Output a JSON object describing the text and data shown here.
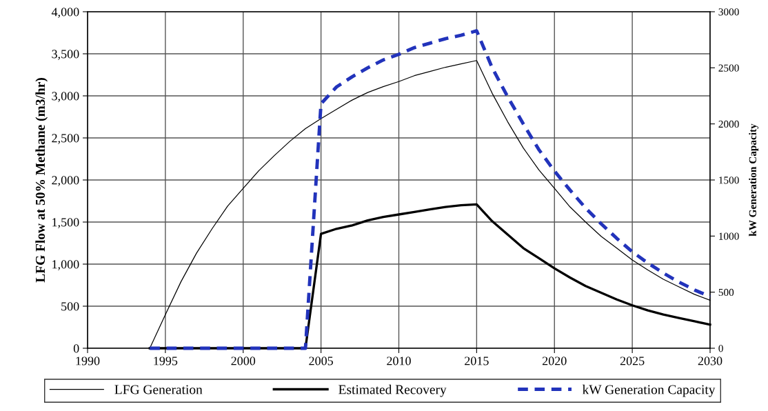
{
  "chart_data": {
    "type": "line",
    "ylabel": "LFG Flow at 50% Methane (m3/hr)",
    "y2label": "kW Generation Capacity",
    "x": [
      1994,
      1995,
      1996,
      1997,
      1998,
      1999,
      2000,
      2001,
      2002,
      2003,
      2004,
      2005,
      2006,
      2007,
      2008,
      2009,
      2010,
      2011,
      2012,
      2013,
      2014,
      2015,
      2016,
      2017,
      2018,
      2019,
      2020,
      2021,
      2022,
      2023,
      2024,
      2025,
      2026,
      2027,
      2028,
      2029,
      2030
    ],
    "series": [
      {
        "name": "LFG Generation",
        "color": "#000000",
        "line_style": "solid",
        "values": [
          0,
          400,
          790,
          1130,
          1420,
          1690,
          1900,
          2110,
          2290,
          2460,
          2610,
          2730,
          2840,
          2950,
          3040,
          3110,
          3170,
          3240,
          3290,
          3340,
          3380,
          3420,
          3030,
          2690,
          2380,
          2120,
          1900,
          1680,
          1500,
          1330,
          1190,
          1050,
          930,
          820,
          730,
          640,
          570
        ]
      },
      {
        "name": "Estimated Recovery",
        "color": "#000000",
        "line_style": "solid",
        "values": [
          0,
          0,
          0,
          0,
          0,
          0,
          0,
          0,
          0,
          0,
          0,
          1360,
          1420,
          1460,
          1520,
          1560,
          1590,
          1620,
          1650,
          1680,
          1700,
          1710,
          1510,
          1350,
          1190,
          1070,
          950,
          840,
          740,
          660,
          580,
          510,
          450,
          400,
          360,
          320,
          280
        ]
      },
      {
        "name": "kW Generation Capacity",
        "color": "#2233bb",
        "line_style": "dashed",
        "axis": "y2",
        "values": [
          0,
          0,
          0,
          0,
          0,
          0,
          0,
          0,
          0,
          0,
          0,
          2180,
          2330,
          2420,
          2500,
          2570,
          2620,
          2680,
          2720,
          2760,
          2790,
          2830,
          2500,
          2240,
          2000,
          1770,
          1580,
          1410,
          1250,
          1110,
          980,
          860,
          760,
          670,
          590,
          520,
          460
        ]
      }
    ],
    "xlim": [
      1990,
      2030
    ],
    "xticks": [
      1990,
      1995,
      2000,
      2005,
      2010,
      2015,
      2020,
      2025,
      2030
    ],
    "ylim": [
      0,
      4000
    ],
    "yticks": [
      {
        "value": 0,
        "label": "0"
      },
      {
        "value": 500,
        "label": "500"
      },
      {
        "value": 1000,
        "label": "1,000"
      },
      {
        "value": 1500,
        "label": "1,500"
      },
      {
        "value": 2000,
        "label": "2,000"
      },
      {
        "value": 2500,
        "label": "2,500"
      },
      {
        "value": 3000,
        "label": "3,000"
      },
      {
        "value": 3500,
        "label": "3,500"
      },
      {
        "value": 4000,
        "label": "4,000"
      }
    ],
    "y2lim": [
      0,
      3000
    ],
    "y2ticks": [
      0,
      500,
      1000,
      1500,
      2000,
      2500,
      3000
    ],
    "grid": true,
    "legend": "bottom",
    "marker": "none"
  }
}
